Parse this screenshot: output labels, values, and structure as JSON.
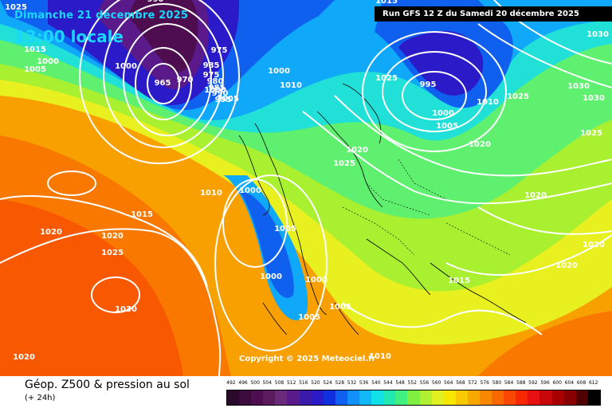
{
  "header": {
    "date": "Dimanche 21 décembre 2025",
    "time": "13:00 locale",
    "run": "Run GFS 12 Z du Samedi 20 décembre 2025"
  },
  "copyright": "Copyright © 2025 Meteociel.fr",
  "footer": {
    "title": "Géop. Z500 & pression au sol",
    "subtitle": "(+ 24h)"
  },
  "scale": {
    "ticks": [
      "492",
      "496",
      "500",
      "504",
      "508",
      "512",
      "516",
      "520",
      "524",
      "528",
      "532",
      "536",
      "540",
      "544",
      "548",
      "552",
      "556",
      "560",
      "564",
      "568",
      "572",
      "576",
      "580",
      "584",
      "588",
      "592",
      "596",
      "600",
      "604",
      "608",
      "612"
    ],
    "colors": [
      "#2a0a2a",
      "#3b0b3b",
      "#4e0d4e",
      "#5b1a5b",
      "#6a2a7a",
      "#5a1a8a",
      "#3a1aa8",
      "#2a1ac8",
      "#1030e0",
      "#1060f0",
      "#1090f8",
      "#10b8f8",
      "#10e0e8",
      "#20e8b0",
      "#40f080",
      "#80f040",
      "#b0f030",
      "#e0f020",
      "#f8e800",
      "#f8c800",
      "#f8a800",
      "#f88800",
      "#f86800",
      "#f84800",
      "#f82800",
      "#e81010",
      "#c80808",
      "#a80000",
      "#880000",
      "#500000",
      "#000000"
    ]
  },
  "isobar_labels": [
    "1025",
    "1015",
    "1000",
    "1005",
    "1000",
    "990",
    "975",
    "985",
    "970",
    "965",
    "975",
    "980",
    "985",
    "990",
    "995",
    "1000",
    "1005",
    "1000",
    "1010",
    "1015",
    "1025",
    "995",
    "1000",
    "1005",
    "1010",
    "1025",
    "1020",
    "1030",
    "1030",
    "1030",
    "1025",
    "1020",
    "1025",
    "1020",
    "1015",
    "1010",
    "1000",
    "1020",
    "1025",
    "1020",
    "1030",
    "1005",
    "1000",
    "1000",
    "1005",
    "1005",
    "1015",
    "1020",
    "1020",
    "1020",
    "1010"
  ]
}
